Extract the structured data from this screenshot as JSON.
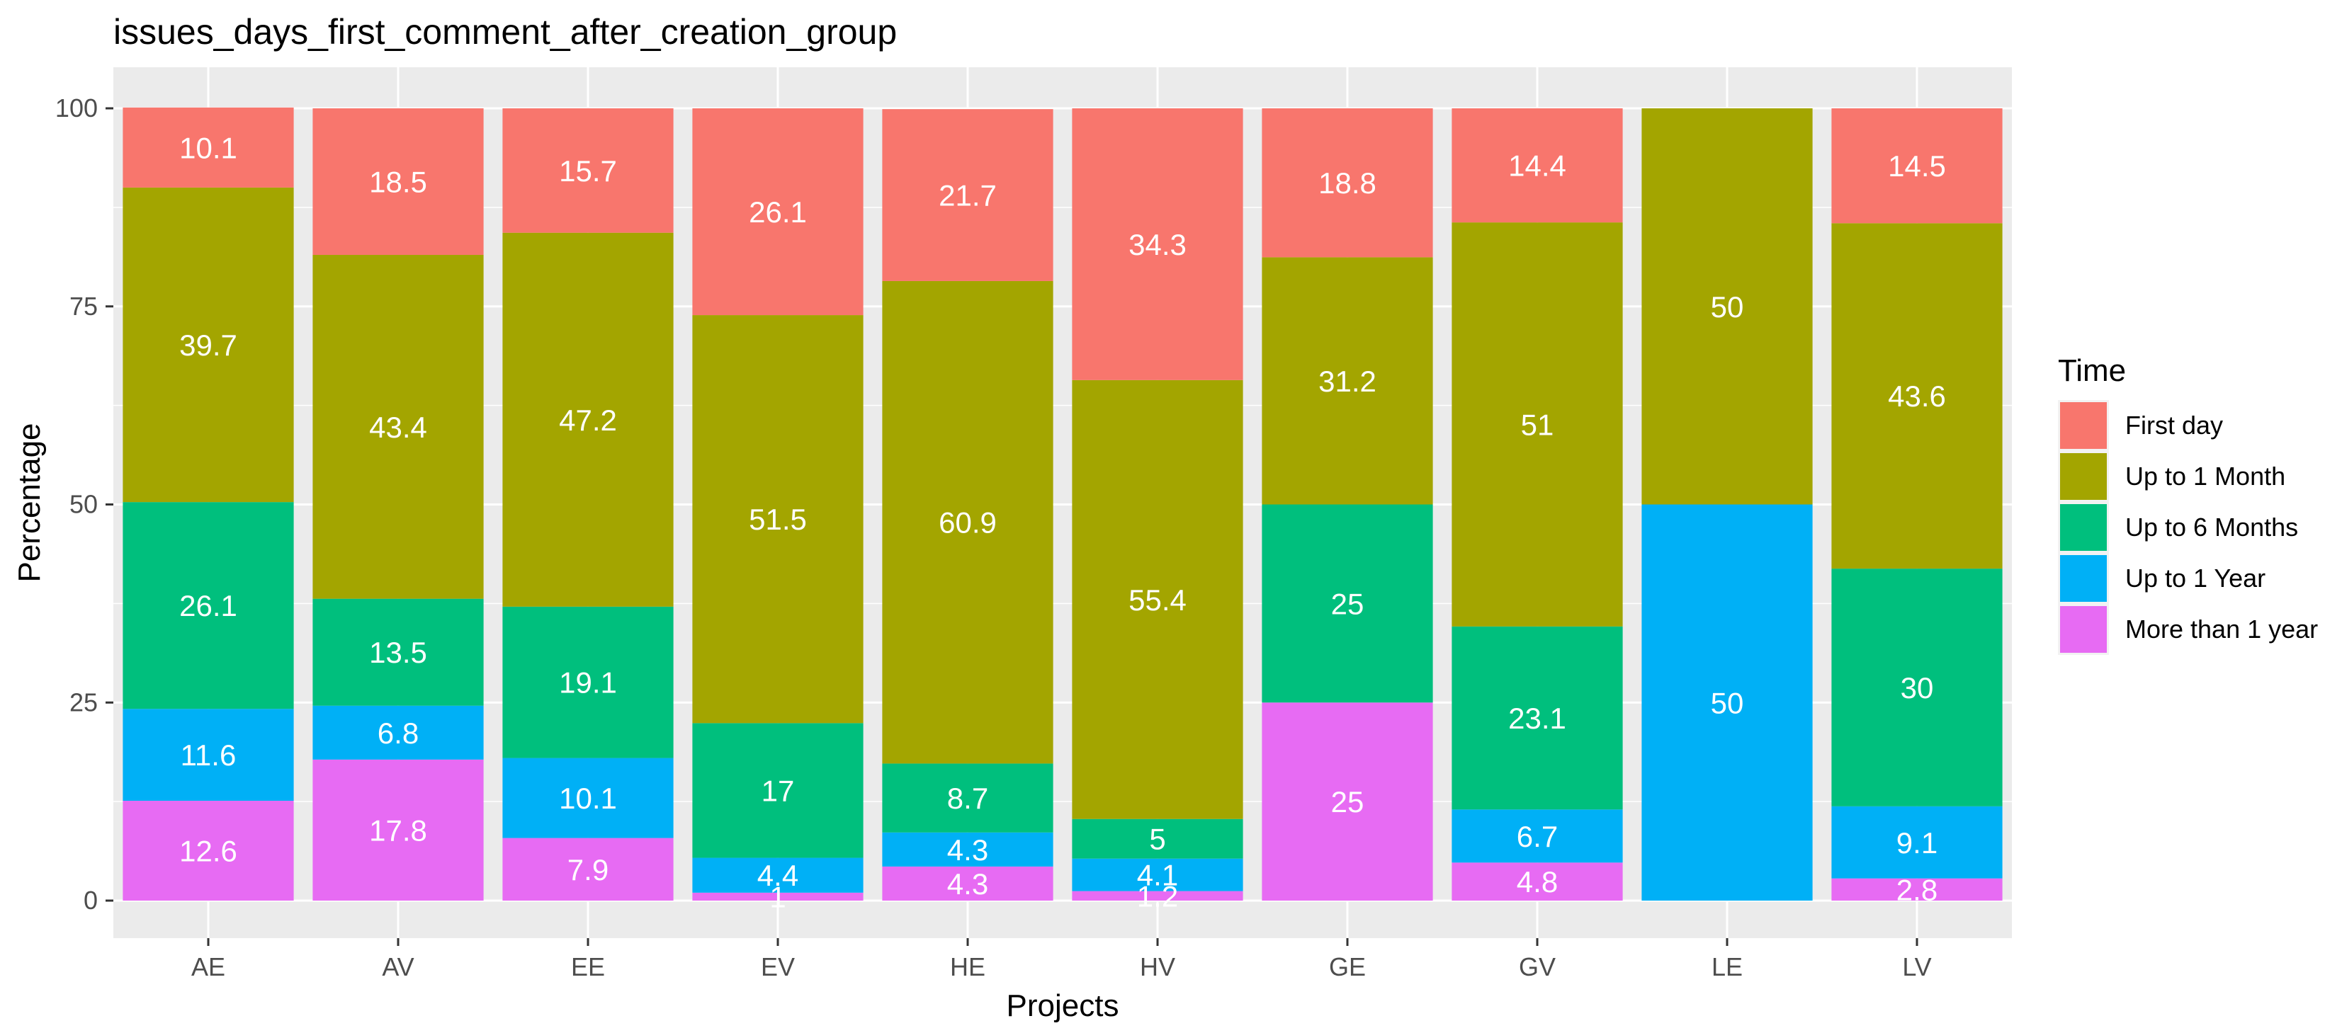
{
  "chart_data": {
    "type": "bar",
    "stacked": true,
    "title": "issues_days_first_comment_after_creation_group",
    "xlabel": "Projects",
    "ylabel": "Percentage",
    "ylim": [
      0,
      100
    ],
    "yticks": [
      0,
      25,
      50,
      75,
      100
    ],
    "grid": true,
    "legend_position": "right",
    "legend_title": "Time",
    "categories": [
      "AE",
      "AV",
      "EE",
      "EV",
      "HE",
      "HV",
      "GE",
      "GV",
      "LE",
      "LV"
    ],
    "series": [
      {
        "name": "More than 1 year",
        "color": "#E76BF3",
        "values": [
          12.6,
          17.8,
          7.9,
          1,
          4.3,
          1.2,
          25,
          4.8,
          0,
          2.8
        ],
        "labels": [
          "12.6",
          "17.8",
          "7.9",
          "1",
          "4.3",
          "1.2",
          "25",
          "4.8",
          "",
          "2.8"
        ]
      },
      {
        "name": "Up to 1 Year",
        "color": "#00B0F6",
        "values": [
          11.6,
          6.8,
          10.1,
          4.4,
          4.3,
          4.1,
          0,
          6.7,
          50,
          9.1
        ],
        "labels": [
          "11.6",
          "6.8",
          "10.1",
          "4.4",
          "4.3",
          "4.1",
          "",
          "6.7",
          "50",
          "9.1"
        ]
      },
      {
        "name": "Up to 6 Months",
        "color": "#00BF7D",
        "values": [
          26.1,
          13.5,
          19.1,
          17,
          8.7,
          5,
          25,
          23.1,
          0,
          30
        ],
        "labels": [
          "26.1",
          "13.5",
          "19.1",
          "17",
          "8.7",
          "5",
          "25",
          "23.1",
          "",
          "30"
        ]
      },
      {
        "name": "Up to 1 Month",
        "color": "#A3A500",
        "values": [
          39.7,
          43.4,
          47.2,
          51.5,
          60.9,
          55.4,
          31.2,
          51,
          50,
          43.6
        ],
        "labels": [
          "39.7",
          "43.4",
          "47.2",
          "51.5",
          "60.9",
          "55.4",
          "31.2",
          "51",
          "50",
          "43.6"
        ]
      },
      {
        "name": "First day",
        "color": "#F8766D",
        "values": [
          10.1,
          18.5,
          15.7,
          26.1,
          21.7,
          34.3,
          18.8,
          14.4,
          0,
          14.5
        ],
        "labels": [
          "10.1",
          "18.5",
          "15.7",
          "26.1",
          "21.7",
          "34.3",
          "18.8",
          "14.4",
          "",
          "14.5"
        ]
      }
    ],
    "legend_order": [
      "First day",
      "Up to 1 Month",
      "Up to 6 Months",
      "Up to 1 Year",
      "More than 1 year"
    ]
  }
}
